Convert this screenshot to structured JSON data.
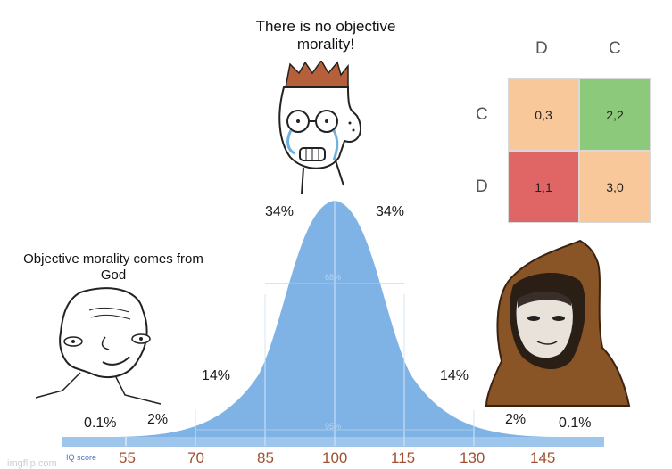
{
  "captions": {
    "top": "There is no objective morality!",
    "left": "Objective morality comes from God"
  },
  "distribution": {
    "axis_label": "IQ score",
    "ticks": [
      "55",
      "70",
      "85",
      "100",
      "115",
      "130",
      "145"
    ],
    "percentages": {
      "left_far": "0.1%",
      "left_tail": "2%",
      "left_mid": "14%",
      "left_center": "34%",
      "right_center": "34%",
      "right_mid": "14%",
      "right_tail": "2%",
      "right_far": "0.1%"
    },
    "inner_labels": {
      "band68": "68%",
      "band95": "95%"
    },
    "colors": {
      "fill": "#7fb3e6",
      "axis_bar": "#9ec6ec"
    }
  },
  "matrix": {
    "col_headers": [
      "D",
      "C"
    ],
    "row_headers": [
      "C",
      "D"
    ],
    "cells": [
      [
        "0,3",
        "2,2"
      ],
      [
        "1,1",
        "3,0"
      ]
    ],
    "colors": [
      [
        "#f9c89a",
        "#8dc97a"
      ],
      [
        "#e06565",
        "#f9c89a"
      ]
    ]
  },
  "watermark": "imgflip.com",
  "characters": {
    "left": "smiling-wojak-icon",
    "middle": "crying-wojak-icon",
    "right": "hooded-monk-icon"
  }
}
